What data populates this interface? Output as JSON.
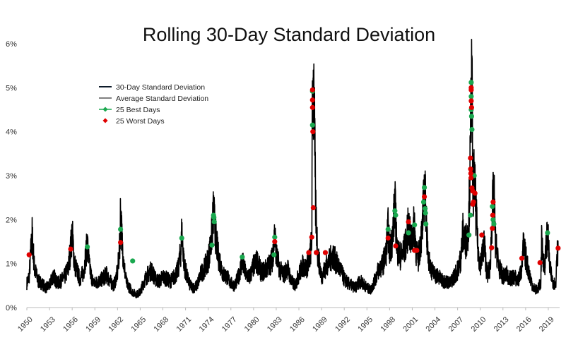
{
  "chart_data": {
    "type": "line",
    "title": "Rolling 30-Day Standard Deviation",
    "xlabel": "",
    "ylabel": "",
    "xlim": [
      1950,
      2020.5
    ],
    "ylim": [
      0,
      6
    ],
    "y_ticks": [
      "0%",
      "1%",
      "2%",
      "3%",
      "4%",
      "5%",
      "6%"
    ],
    "y_tick_values": [
      0,
      1,
      2,
      3,
      4,
      5,
      6
    ],
    "x_ticks": [
      "1950",
      "1953",
      "1956",
      "1959",
      "1962",
      "1965",
      "1968",
      "1971",
      "1974",
      "1977",
      "1980",
      "1983",
      "1986",
      "1989",
      "1992",
      "1995",
      "1998",
      "2001",
      "2004",
      "2007",
      "2010",
      "2013",
      "2016",
      "2019"
    ],
    "x_tick_values": [
      1950,
      1953,
      1956,
      1959,
      1962,
      1965,
      1968,
      1971,
      1974,
      1977,
      1980,
      1983,
      1986,
      1989,
      1992,
      1995,
      1998,
      2001,
      2004,
      2007,
      2010,
      2013,
      2016,
      2019
    ],
    "grid": false,
    "legend_position": "upper-left",
    "legend": [
      {
        "label": "30-Day Standard Deviation",
        "color": "#0d1b2a",
        "marker": "line"
      },
      {
        "label": "Average Standard Deviation",
        "color": "#808080",
        "marker": "line"
      },
      {
        "label": "25 Best Days",
        "color": "#1aa84f",
        "marker": "line-dot"
      },
      {
        "label": "25 Worst Days",
        "color": "#e00000",
        "marker": "diamond"
      }
    ],
    "series": [
      {
        "name": "30-Day Standard Deviation",
        "color": "#000000",
        "points": [
          [
            1950.0,
            0.55
          ],
          [
            1950.3,
            0.7
          ],
          [
            1950.5,
            1.2
          ],
          [
            1950.7,
            1.65
          ],
          [
            1951.0,
            0.9
          ],
          [
            1951.5,
            0.6
          ],
          [
            1952.0,
            0.55
          ],
          [
            1952.5,
            0.45
          ],
          [
            1953.0,
            0.5
          ],
          [
            1953.5,
            0.75
          ],
          [
            1954.0,
            0.55
          ],
          [
            1954.5,
            0.6
          ],
          [
            1955.0,
            0.7
          ],
          [
            1955.5,
            0.9
          ],
          [
            1955.8,
            1.35
          ],
          [
            1956.0,
            1.7
          ],
          [
            1956.3,
            1.0
          ],
          [
            1956.7,
            0.8
          ],
          [
            1957.0,
            0.65
          ],
          [
            1957.5,
            0.8
          ],
          [
            1957.8,
            1.2
          ],
          [
            1958.0,
            1.45
          ],
          [
            1958.3,
            0.9
          ],
          [
            1958.7,
            0.6
          ],
          [
            1959.0,
            0.55
          ],
          [
            1959.5,
            0.6
          ],
          [
            1960.0,
            0.65
          ],
          [
            1960.5,
            0.75
          ],
          [
            1961.0,
            0.6
          ],
          [
            1961.5,
            0.5
          ],
          [
            1962.0,
            0.8
          ],
          [
            1962.3,
            1.4
          ],
          [
            1962.4,
            2.25
          ],
          [
            1962.6,
            1.5
          ],
          [
            1962.9,
            0.9
          ],
          [
            1963.2,
            0.55
          ],
          [
            1963.6,
            0.45
          ],
          [
            1964.0,
            0.35
          ],
          [
            1964.5,
            0.3
          ],
          [
            1965.0,
            0.35
          ],
          [
            1965.5,
            0.6
          ],
          [
            1966.0,
            0.75
          ],
          [
            1966.5,
            0.85
          ],
          [
            1967.0,
            0.65
          ],
          [
            1967.5,
            0.6
          ],
          [
            1968.0,
            0.7
          ],
          [
            1968.5,
            0.65
          ],
          [
            1969.0,
            0.6
          ],
          [
            1969.5,
            0.7
          ],
          [
            1970.0,
            0.85
          ],
          [
            1970.4,
            1.3
          ],
          [
            1970.5,
            1.75
          ],
          [
            1970.8,
            1.0
          ],
          [
            1971.2,
            0.7
          ],
          [
            1971.6,
            0.5
          ],
          [
            1972.0,
            0.45
          ],
          [
            1972.5,
            0.5
          ],
          [
            1973.0,
            0.75
          ],
          [
            1973.5,
            0.9
          ],
          [
            1974.0,
            1.1
          ],
          [
            1974.4,
            1.5
          ],
          [
            1974.7,
            2.2
          ],
          [
            1975.0,
            1.6
          ],
          [
            1975.3,
            1.2
          ],
          [
            1975.7,
            0.95
          ],
          [
            1976.0,
            0.75
          ],
          [
            1976.5,
            0.7
          ],
          [
            1977.0,
            0.55
          ],
          [
            1977.5,
            0.5
          ],
          [
            1978.0,
            0.7
          ],
          [
            1978.5,
            1.05
          ],
          [
            1979.0,
            0.75
          ],
          [
            1979.5,
            0.7
          ],
          [
            1980.0,
            0.95
          ],
          [
            1980.5,
            1.05
          ],
          [
            1981.0,
            0.8
          ],
          [
            1981.5,
            0.85
          ],
          [
            1982.0,
            0.95
          ],
          [
            1982.5,
            1.1
          ],
          [
            1982.8,
            1.7
          ],
          [
            1983.0,
            1.2
          ],
          [
            1983.5,
            0.85
          ],
          [
            1984.0,
            0.75
          ],
          [
            1984.5,
            0.9
          ],
          [
            1985.0,
            0.6
          ],
          [
            1985.5,
            0.5
          ],
          [
            1986.0,
            0.75
          ],
          [
            1986.5,
            0.95
          ],
          [
            1987.0,
            0.9
          ],
          [
            1987.4,
            1.1
          ],
          [
            1987.7,
            1.5
          ],
          [
            1987.8,
            4.8
          ],
          [
            1988.0,
            4.95
          ],
          [
            1988.2,
            2.3
          ],
          [
            1988.5,
            1.2
          ],
          [
            1988.8,
            0.9
          ],
          [
            1989.0,
            0.7
          ],
          [
            1989.5,
            0.9
          ],
          [
            1990.0,
            1.05
          ],
          [
            1990.5,
            1.2
          ],
          [
            1991.0,
            1.0
          ],
          [
            1991.5,
            0.85
          ],
          [
            1992.0,
            0.65
          ],
          [
            1992.5,
            0.55
          ],
          [
            1993.0,
            0.5
          ],
          [
            1993.5,
            0.45
          ],
          [
            1994.0,
            0.6
          ],
          [
            1994.5,
            0.55
          ],
          [
            1995.0,
            0.45
          ],
          [
            1995.5,
            0.4
          ],
          [
            1996.0,
            0.6
          ],
          [
            1996.5,
            0.85
          ],
          [
            1997.0,
            0.95
          ],
          [
            1997.5,
            1.2
          ],
          [
            1997.8,
            1.8
          ],
          [
            1998.0,
            1.3
          ],
          [
            1998.4,
            1.6
          ],
          [
            1998.7,
            2.4
          ],
          [
            1999.0,
            1.3
          ],
          [
            1999.5,
            1.15
          ],
          [
            2000.0,
            1.35
          ],
          [
            2000.3,
            1.6
          ],
          [
            2000.5,
            1.9
          ],
          [
            2000.8,
            1.5
          ],
          [
            2001.0,
            1.65
          ],
          [
            2001.3,
            1.9
          ],
          [
            2001.5,
            1.3
          ],
          [
            2001.8,
            1.1
          ],
          [
            2002.0,
            1.4
          ],
          [
            2002.3,
            1.7
          ],
          [
            2002.6,
            2.7
          ],
          [
            2002.8,
            2.3
          ],
          [
            2003.0,
            1.4
          ],
          [
            2003.3,
            1.0
          ],
          [
            2003.7,
            0.8
          ],
          [
            2004.0,
            0.75
          ],
          [
            2004.5,
            0.7
          ],
          [
            2005.0,
            0.6
          ],
          [
            2005.5,
            0.6
          ],
          [
            2006.0,
            0.55
          ],
          [
            2006.5,
            0.7
          ],
          [
            2007.0,
            0.85
          ],
          [
            2007.4,
            1.1
          ],
          [
            2007.7,
            1.7
          ],
          [
            2008.0,
            1.5
          ],
          [
            2008.3,
            1.6
          ],
          [
            2008.5,
            2.1
          ],
          [
            2008.7,
            3.5
          ],
          [
            2008.8,
            5.1
          ],
          [
            2008.9,
            4.9
          ],
          [
            2009.0,
            2.8
          ],
          [
            2009.2,
            2.9
          ],
          [
            2009.4,
            2.3
          ],
          [
            2009.7,
            1.3
          ],
          [
            2010.0,
            1.0
          ],
          [
            2010.3,
            1.2
          ],
          [
            2010.5,
            1.5
          ],
          [
            2010.8,
            0.9
          ],
          [
            2011.0,
            0.75
          ],
          [
            2011.3,
            0.9
          ],
          [
            2011.6,
            2.2
          ],
          [
            2011.8,
            2.7
          ],
          [
            2012.0,
            1.5
          ],
          [
            2012.5,
            0.9
          ],
          [
            2013.0,
            0.7
          ],
          [
            2013.5,
            0.75
          ],
          [
            2014.0,
            0.65
          ],
          [
            2014.5,
            0.7
          ],
          [
            2015.0,
            0.6
          ],
          [
            2015.5,
            0.9
          ],
          [
            2015.7,
            1.4
          ],
          [
            2016.0,
            1.15
          ],
          [
            2016.5,
            0.75
          ],
          [
            2017.0,
            0.45
          ],
          [
            2017.5,
            0.4
          ],
          [
            2018.0,
            0.55
          ],
          [
            2018.1,
            1.5
          ],
          [
            2018.5,
            0.9
          ],
          [
            2018.9,
            1.75
          ],
          [
            2019.2,
            0.9
          ],
          [
            2019.6,
            0.6
          ],
          [
            2020.0,
            0.5
          ],
          [
            2020.1,
            1.2
          ],
          [
            2020.3,
            1.35
          ]
        ]
      }
    ],
    "best_days": [
      [
        1962.4,
        1.78
      ],
      [
        1964.0,
        1.06
      ],
      [
        1958.0,
        1.38
      ],
      [
        1970.5,
        1.58
      ],
      [
        1974.7,
        2.1
      ],
      [
        1974.75,
        2.05
      ],
      [
        1974.8,
        1.95
      ],
      [
        1974.5,
        1.42
      ],
      [
        1978.5,
        1.15
      ],
      [
        1982.8,
        1.6
      ],
      [
        1982.7,
        1.2
      ],
      [
        1987.8,
        4.92
      ],
      [
        1987.8,
        4.15
      ],
      [
        1997.8,
        1.78
      ],
      [
        1998.7,
        2.2
      ],
      [
        1998.8,
        2.1
      ],
      [
        2000.5,
        1.7
      ],
      [
        2001.3,
        1.88
      ],
      [
        2001.5,
        1.3
      ],
      [
        2002.6,
        2.73
      ],
      [
        2002.5,
        2.4
      ],
      [
        2002.7,
        2.25
      ],
      [
        2002.8,
        1.9
      ],
      [
        2002.75,
        2.15
      ],
      [
        2008.8,
        5.12
      ],
      [
        2008.8,
        4.8
      ],
      [
        2008.8,
        4.5
      ],
      [
        2008.85,
        4.35
      ],
      [
        2008.9,
        4.05
      ],
      [
        2008.7,
        2.1
      ],
      [
        2009.2,
        3.0
      ],
      [
        2011.6,
        2.3
      ],
      [
        2011.7,
        2.0
      ],
      [
        2011.8,
        1.9
      ],
      [
        2018.9,
        1.7
      ],
      [
        2008.5,
        1.65
      ]
    ],
    "worst_days": [
      [
        1950.3,
        1.2
      ],
      [
        1955.8,
        1.33
      ],
      [
        1962.4,
        1.48
      ],
      [
        1982.8,
        1.5
      ],
      [
        1987.3,
        1.25
      ],
      [
        1987.8,
        4.95
      ],
      [
        1987.8,
        4.72
      ],
      [
        1987.8,
        4.55
      ],
      [
        1987.85,
        4.0
      ],
      [
        1987.9,
        2.27
      ],
      [
        1987.7,
        1.6
      ],
      [
        1988.3,
        1.25
      ],
      [
        1989.5,
        1.25
      ],
      [
        1997.8,
        1.58
      ],
      [
        1998.8,
        1.4
      ],
      [
        2000.5,
        1.95
      ],
      [
        2001.3,
        1.3
      ],
      [
        2001.6,
        1.3
      ],
      [
        2002.6,
        2.52
      ],
      [
        2008.8,
        5.0
      ],
      [
        2008.8,
        4.95
      ],
      [
        2008.8,
        4.7
      ],
      [
        2008.85,
        4.55
      ],
      [
        2008.7,
        3.4
      ],
      [
        2008.72,
        3.15
      ],
      [
        2008.75,
        3.05
      ],
      [
        2008.78,
        2.95
      ],
      [
        2008.9,
        2.72
      ],
      [
        2009.0,
        2.65
      ],
      [
        2009.1,
        2.4
      ],
      [
        2009.0,
        2.35
      ],
      [
        2009.3,
        2.6
      ],
      [
        2010.2,
        1.65
      ],
      [
        2011.5,
        1.36
      ],
      [
        2011.6,
        1.8
      ],
      [
        2011.65,
        2.1
      ],
      [
        2011.7,
        2.4
      ],
      [
        2015.5,
        1.12
      ],
      [
        2017.9,
        1.02
      ],
      [
        2020.3,
        1.35
      ]
    ]
  }
}
